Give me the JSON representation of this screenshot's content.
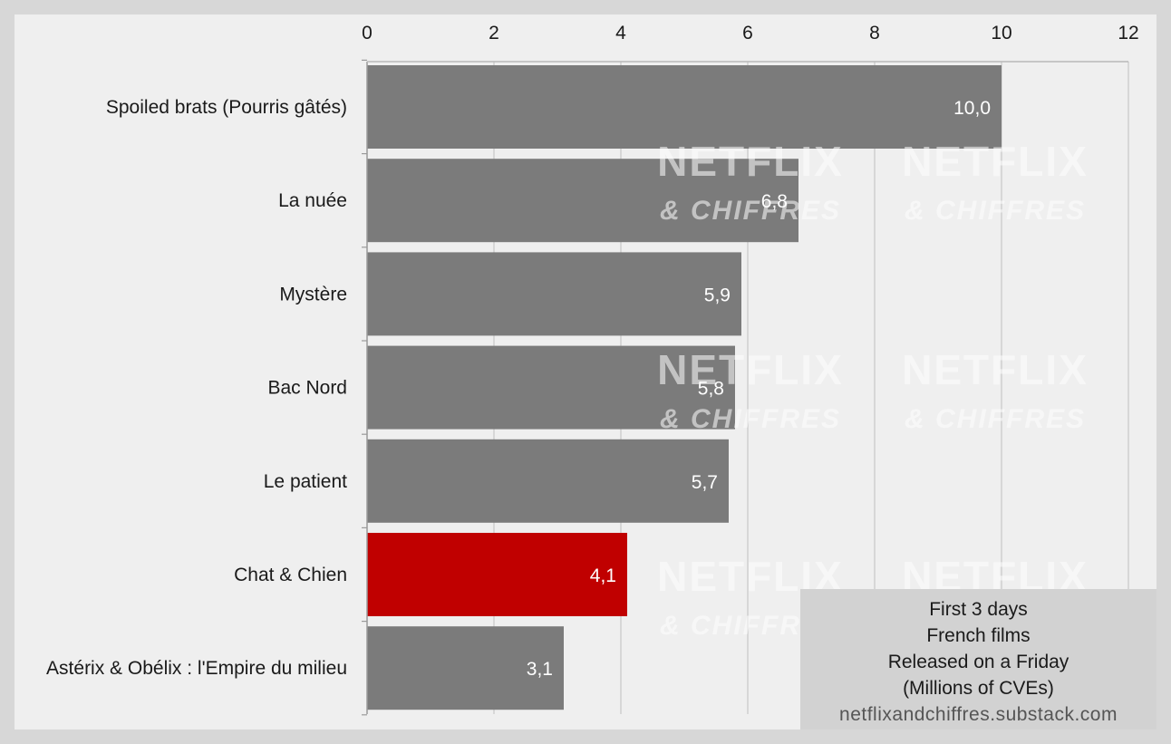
{
  "chart_data": {
    "type": "bar",
    "orientation": "horizontal",
    "categories": [
      "Spoiled brats (Pourris gâtés)",
      "La nuée",
      "Mystère",
      "Bac Nord",
      "Le patient",
      "Chat & Chien",
      "Astérix & Obélix : l'Empire du milieu"
    ],
    "values": [
      10.0,
      6.8,
      5.9,
      5.8,
      5.7,
      4.1,
      3.1
    ],
    "value_labels": [
      "10,0",
      "6,8",
      "5,9",
      "5,8",
      "5,7",
      "4,1",
      "3,1"
    ],
    "highlight_index": 5,
    "xlim": [
      0,
      12
    ],
    "ticks": [
      0,
      2,
      4,
      6,
      8,
      10,
      12
    ],
    "axis_position": "top",
    "grid": true,
    "legend": "none",
    "colors": {
      "bar": "#7b7b7b",
      "highlight": "#c00000",
      "grid": "#cfcfcf"
    }
  },
  "caption": {
    "lines": [
      "First 3 days",
      "French films",
      "Released on a Friday",
      "(Millions of CVEs)"
    ],
    "source": "netflixandchiffres.substack.com"
  },
  "watermark": {
    "line1": "NETFLIX",
    "line2": "& CHIFFRES"
  }
}
